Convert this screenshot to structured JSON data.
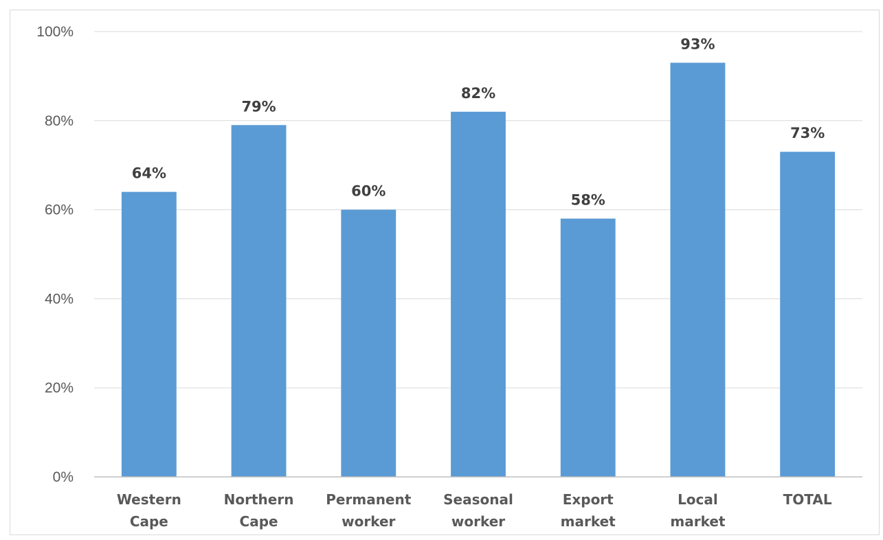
{
  "chart_data": {
    "type": "bar",
    "title": "",
    "xlabel": "",
    "ylabel": "",
    "categories": [
      [
        "Western",
        "Cape"
      ],
      [
        "Northern",
        "Cape"
      ],
      [
        "Permanent",
        "worker"
      ],
      [
        "Seasonal",
        "worker"
      ],
      [
        "Export",
        "market"
      ],
      [
        "Local",
        "market"
      ],
      [
        "TOTAL"
      ]
    ],
    "values": [
      64,
      79,
      60,
      82,
      58,
      93,
      73
    ],
    "data_labels": [
      "64%",
      "79%",
      "60%",
      "82%",
      "58%",
      "93%",
      "73%"
    ],
    "yticks": [
      0,
      20,
      40,
      60,
      80,
      100
    ],
    "ytick_labels": [
      "0%",
      "20%",
      "40%",
      "60%",
      "80%",
      "100%"
    ],
    "ylim": [
      0,
      100
    ],
    "grid": true,
    "legend": "none",
    "bar_color": "#5b9bd5"
  }
}
